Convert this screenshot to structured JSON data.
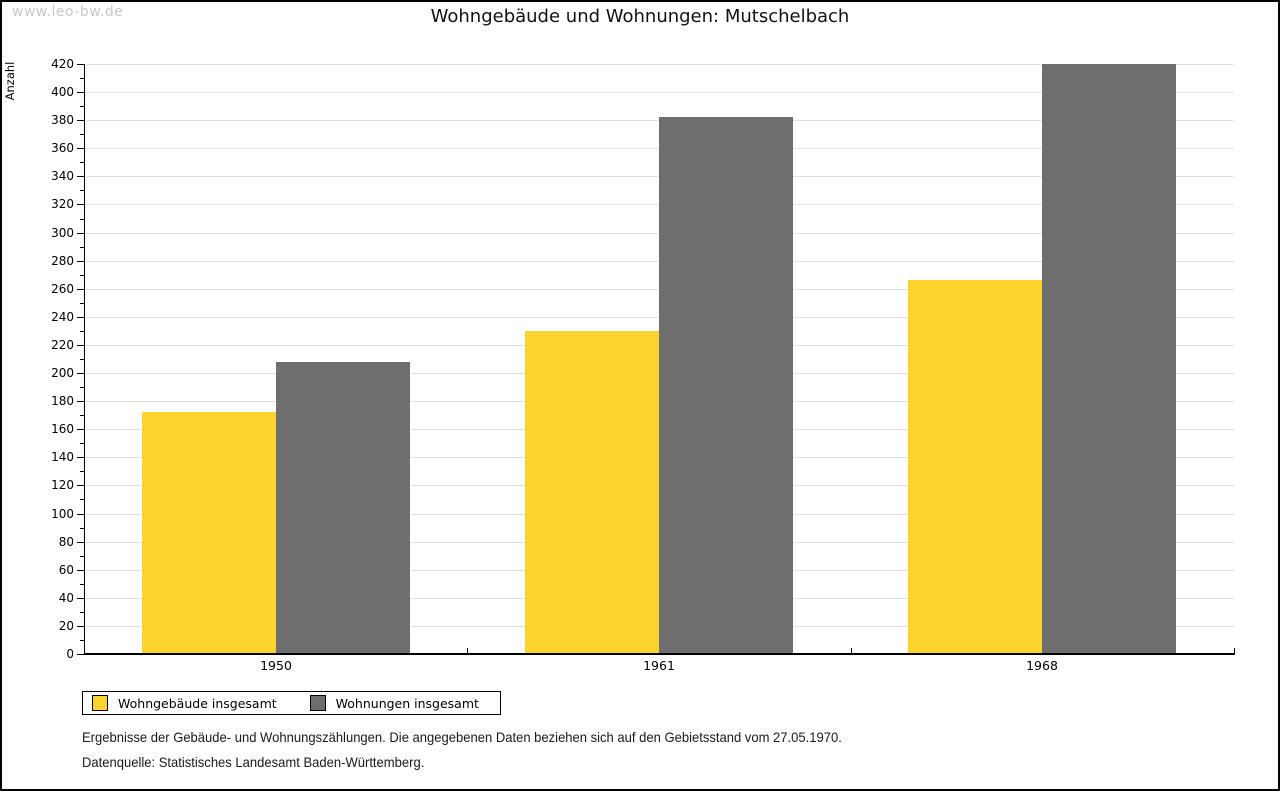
{
  "watermark": "www.leo-bw.de",
  "title": "Wohngebäude und Wohnungen: Mutschelbach",
  "chart_data": {
    "type": "bar",
    "title": "Wohngebäude und Wohnungen: Mutschelbach",
    "xlabel": "",
    "ylabel": "Anzahl",
    "categories": [
      "1950",
      "1961",
      "1968"
    ],
    "series": [
      {
        "name": "Wohngebäude insgesamt",
        "color": "#FCD42D",
        "values": [
          172,
          230,
          266
        ]
      },
      {
        "name": "Wohnungen insgesamt",
        "color": "#6E6E6E",
        "values": [
          208,
          382,
          420
        ]
      }
    ],
    "ylim": [
      0,
      420
    ],
    "ytick_step": 20,
    "yminor_step": 10,
    "grid": true,
    "gridline_color": "#e0e0e0",
    "legend_position": "bottom-left"
  },
  "footer": {
    "line1": "Ergebnisse der Gebäude- und Wohnungszählungen. Die angegebenen Daten beziehen sich auf den Gebietsstand vom 27.05.1970.",
    "line2": "Datenquelle: Statistisches Landesamt Baden-Württemberg."
  }
}
